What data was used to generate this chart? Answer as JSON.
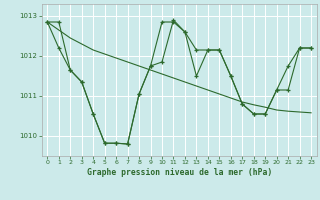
{
  "title": "Graphe pression niveau de la mer (hPa)",
  "bg_color": "#cceaea",
  "grid_color": "#ffffff",
  "line_color": "#2d6a2d",
  "xlim": [
    -0.5,
    23.5
  ],
  "ylim": [
    1009.5,
    1013.3
  ],
  "yticks": [
    1010,
    1011,
    1012,
    1013
  ],
  "xticks": [
    0,
    1,
    2,
    3,
    4,
    5,
    6,
    7,
    8,
    9,
    10,
    11,
    12,
    13,
    14,
    15,
    16,
    17,
    18,
    19,
    20,
    21,
    22,
    23
  ],
  "line1": [
    1012.85,
    1012.85,
    1011.65,
    1011.35,
    1010.55,
    1009.82,
    1009.82,
    1009.8,
    1011.05,
    1011.75,
    1011.85,
    1012.9,
    1012.6,
    1012.15,
    1012.15,
    1012.15,
    1011.5,
    1010.8,
    1010.55,
    1010.55,
    1011.15,
    1011.15,
    1012.2,
    1012.2
  ],
  "line2_x": [
    0,
    1,
    2,
    3,
    4,
    5,
    6,
    7,
    8,
    9,
    10,
    11,
    12,
    13,
    14,
    15,
    16,
    17,
    18,
    19,
    20,
    21,
    22,
    23
  ],
  "line2": [
    1012.85,
    1012.65,
    1012.45,
    1012.3,
    1012.15,
    1012.05,
    1011.95,
    1011.85,
    1011.75,
    1011.65,
    1011.55,
    1011.45,
    1011.35,
    1011.25,
    1011.15,
    1011.05,
    1010.95,
    1010.85,
    1010.78,
    1010.72,
    1010.65,
    1010.62,
    1010.6,
    1010.58
  ],
  "line3": [
    1012.85,
    1012.2,
    1011.65,
    1011.35,
    1010.55,
    1009.82,
    1009.82,
    1009.8,
    1011.05,
    1011.75,
    1012.85,
    1012.85,
    1012.6,
    1011.5,
    1012.15,
    1012.15,
    1011.5,
    1010.8,
    1010.55,
    1010.55,
    1011.15,
    1011.75,
    1012.2,
    1012.2
  ]
}
